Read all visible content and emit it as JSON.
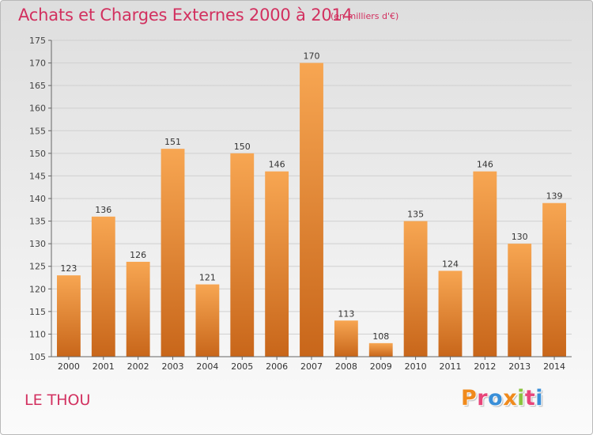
{
  "header": {
    "title": "Achats et Charges Externes 2000 à 2014",
    "unit": "(en milliers d'€)"
  },
  "footer": {
    "commune": "LE THOU",
    "logo": "Proxiti"
  },
  "colors": {
    "title": "#d2305f",
    "bar_top": "#f7a652",
    "bar_bottom": "#c8661a",
    "logo_letters": [
      "#f08a1c",
      "#e8457a",
      "#3a8fd8",
      "#f08a1c",
      "#8bc43f",
      "#e8457a",
      "#3a8fd8"
    ]
  },
  "chart_data": {
    "type": "bar",
    "title": "Achats et Charges Externes 2000 à 2014",
    "xlabel": "",
    "ylabel": "",
    "categories": [
      "2000",
      "2001",
      "2002",
      "2003",
      "2004",
      "2005",
      "2006",
      "2007",
      "2008",
      "2009",
      "2010",
      "2011",
      "2012",
      "2013",
      "2014"
    ],
    "values": [
      123,
      136,
      126,
      151,
      121,
      150,
      146,
      170,
      113,
      108,
      135,
      124,
      146,
      130,
      139
    ],
    "ylim": [
      105,
      175
    ],
    "yticks": [
      105,
      110,
      115,
      120,
      125,
      130,
      135,
      140,
      145,
      150,
      155,
      160,
      165,
      170,
      175
    ],
    "grid": true,
    "legend": "none"
  }
}
